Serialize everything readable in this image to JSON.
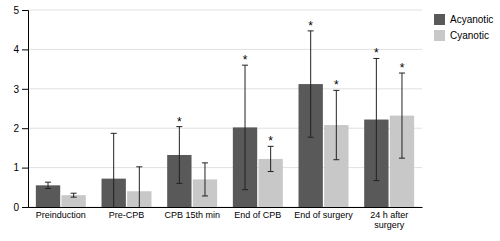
{
  "chart_data": {
    "type": "bar",
    "categories": [
      "Preinduction",
      "Pre-CPB",
      "CPB 15th min",
      "End of CPB",
      "End of surgery",
      "24 h after\nsurgery"
    ],
    "series": [
      {
        "name": "Acyanotic",
        "color": "#595959",
        "values": [
          0.55,
          0.72,
          1.32,
          2.02,
          3.12,
          2.22
        ],
        "errors": [
          0.08,
          1.15,
          0.72,
          1.58,
          1.35,
          1.55
        ],
        "annotations": [
          null,
          null,
          "*",
          "*",
          "*",
          "*"
        ]
      },
      {
        "name": "Cyanotic",
        "color": "#c8c8c8",
        "values": [
          0.3,
          0.4,
          0.7,
          1.22,
          2.08,
          2.32
        ],
        "errors": [
          0.05,
          0.62,
          0.42,
          0.32,
          0.88,
          1.08
        ],
        "annotations": [
          null,
          null,
          null,
          "*",
          "*",
          "*"
        ]
      }
    ],
    "ylim": [
      0,
      5
    ],
    "yticks": [
      0,
      1,
      2,
      3,
      4,
      5
    ],
    "grid": true,
    "legend": "upper right"
  }
}
